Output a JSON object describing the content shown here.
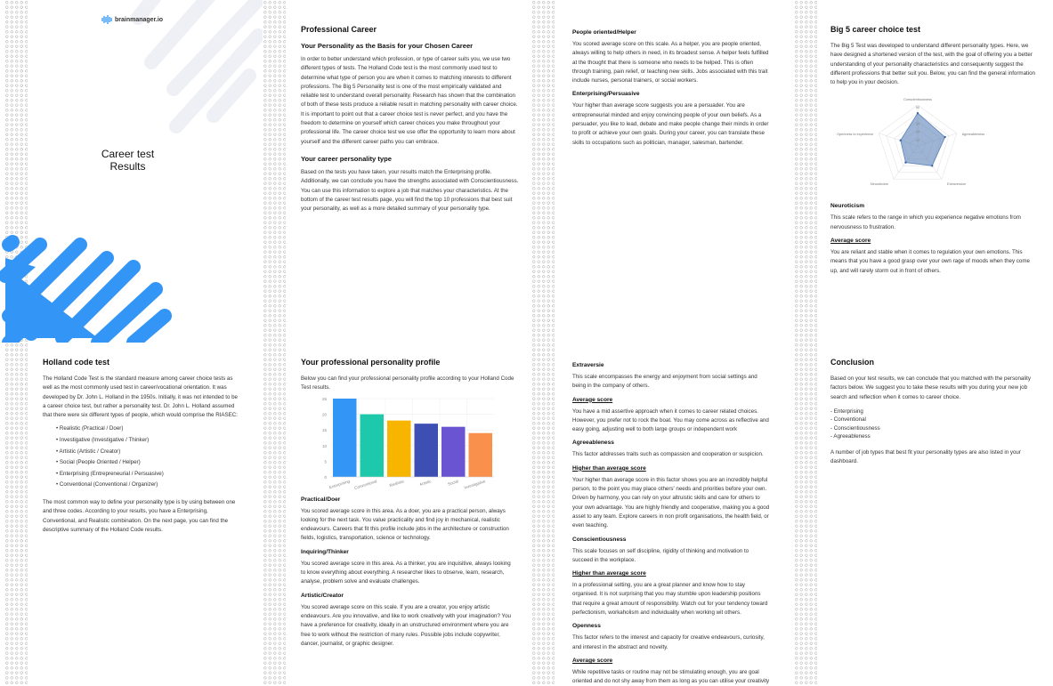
{
  "cover": {
    "logo": "brainmanager.io",
    "title_line1": "Career test",
    "title_line2": "Results",
    "accent": "#3396f7"
  },
  "professional": {
    "title": "Professional Career",
    "h_basis": "Your Personality as the Basis for your Chosen Career",
    "p_basis": "In order to better understand which profession, or type of career suits you, we use two different types of tests. The Holland Code test is the most commonly used test to determine what type of person you are when it comes to matching interests to different professions. The Big 5 Personality test is one of the most empirically validated and reliable test to understand overall personality. Research has shown that the combination of both of these tests produce a reliable result in matching personality with career choice. It is important to point out that a career choice test is never perfect, and you have the freedom to determine on yourself which career choices you make throughout your professional life. The career choice test we use offer the opportunity to learn more about yourself and the different career paths you can embrace.",
    "h_type": "Your career personality type",
    "p_type": "Based on the tests you have taken, your results match the Enterprising profile. Additionally, we can conclude you have the strengths associated with Conscientiousness. You can use this information to explore a job that matches your characteristics. At the bottom of the career test results page, you will find the top 10 professions that best suit your personality, as well as a more detailed summary of your personality type."
  },
  "page3": {
    "h_helper": "People oriented/Helper",
    "p_helper": "You scored average score on this scale. As a helper, you are people oriented, always willing to help others in need, in its broadest sense. A helper feels fulfilled at the thought that there is someone who needs to be helped. This is often through training, pain relief, or teaching new skills. Jobs associated with this trait include nurses, personal trainers, or social workers.",
    "h_enterprising": "Enterprising/Persuasive",
    "p_enterprising": "Your higher than average score suggests you are a persuader. You are entrepreneurial minded and enjoy convincing people of your own beliefs. As a persuader, you like to lead, debate and make people change their minds in order to profit or achieve your own goals. During your career, you can translate these skills to occupations such as politician, manager, salesman, bartender."
  },
  "big5": {
    "title": "Big 5 career choice test",
    "p_intro": "The Big 5 Test was developed to understand different personality types. Here, we have designed a shortened version of the test, with the goal of offering you a better understanding of your personality characteristics and consequently suggest the different professions that better suit you. Below, you can find the general information to help you in your decision.",
    "h_neuro": "Neuroticism",
    "p_neuro": "This scale refers to the range in which you experience negative emotions from nervousness to frustration.",
    "h_neuro_score": "Average score",
    "p_neuro_score": "You are reliant and stable when it comes to regulation your own emotions. This means that you have a good grasp over your own rage of moods when they come up, and will rarely storm out in front of others."
  },
  "holland": {
    "title": "Holland code test",
    "p_intro": "The Holland Code Test is the standard measure among career choice tests as well as the most commonly used test in career/vocational orientation. It was developed by Dr. John L. Holland in the 1950s. Initially, it was not intended to be a career choice test, but rather a personality test. Dr. John L. Holland assumed that there were six different types of people, which would comprise the RIASEC:",
    "items": [
      "• Realistic (Practical / Doer)",
      "• Investigative (Investigative / Thinker)",
      "• Artistic (Artistic / Creator)",
      "• Social (People Oriented / Helper)",
      "• Enterprising (Entrepreneurial / Persuasive)",
      "• Conventional (Conventional / Organizer)"
    ],
    "p_outro": "The most common way to define your personality type is by using between one and three codes. According to your results, you have a Enterprising, Conventional, and Realistic combination. On the next page, you can find the descriptive summary of the Holland Code results."
  },
  "profile": {
    "title": "Your professional personality profile",
    "p_intro": "Below you can find your professional personality profile according to your Holland Code Test results.",
    "h_doer": "Practical/Doer",
    "p_doer": "You scored average score in this area. As a doer, you are a practical person, always looking for the next task. You value practicality and find joy in mechanical, realistic endeavours. Careers that fit this profile include jobs in the architecture or construction fields, logistics, transportation, science or technology.",
    "h_thinker": "Inquiring/Thinker",
    "p_thinker": "You scored average score in this area. As a thinker, you are inquisitive, always looking to know everything about everything. A researcher likes to observe, learn, research, analyse, problem solve and evaluate challenges.",
    "h_creator": "Artistic/Creator",
    "p_creator": "You scored average score on this scale. If you are a creator, you enjoy artistic endeavours. Are you innovative, and like to work creatively with your imagination? You have a preference for creativity, ideally in an unstructured environment where you are free to work without the restriction of many rules. Possible jobs include copywriter, dancer, journalist, or graphic designer."
  },
  "page7": {
    "h_extra": "Extraversie",
    "p_extra": "This scale encompasses the energy and enjoyment from social settings and being in the company of others.",
    "h_extra_score": "Average score",
    "p_extra_score": "You have a mid assertive approach when it comes to career related choices. However, you prefer not to rock the boat. You may come across as reflective and easy going, adjusting well to both large groups or independent work",
    "h_agree": "Agreeableness",
    "p_agree": "This factor addresses traits such as compassion and cooperation or suspicion.",
    "h_agree_score": "Higher than average score",
    "p_agree_score": "Your higher than average score in this factor shows you are an incredibly helpful person, to the point you may place others' needs and priorities before your own. Driven by harmony, you can rely on your altruistic skills and care for others to your own advantage. You are highly friendly and cooperative, making you a good asset to any team. Explore careers in non profit organisations, the health field, or even teaching.",
    "h_consc": "Conscientiousness",
    "p_consc": "This scale focuses on self discipline, rigidity of thinking and motivation to succeed in the workplace.",
    "h_consc_score": "Higher than average score",
    "p_consc_score": "In a professional setting, you are a great planner and know how to stay organised. It is not surprising that you may stumble upon leadership positions that require a great amount of responsibility. Watch out for your tendency toward perfectionism, workaholism and individuality when working wit others.",
    "h_open": "Openness",
    "p_open": "This factor refers to the interest and capacity for creative endeavours, curiosity, and interest in the abstract and novelty.",
    "h_open_score": "Average score",
    "p_open_score": "While repetitive tasks or routine may not be stimulating enough, you are goal oriented and do not shy away from them as long as you can utilise your creativity and intellect in different ways."
  },
  "conclusion": {
    "title": "Conclusion",
    "p_intro": "Based on your test results, we can conclude that you matched with the personality factors below. We suggest you to take these results with you during your new job search and reflection when it comes to career choice.",
    "items": [
      "- Enterprising",
      "- Conventional",
      "- Conscientiousness",
      "- Agreeableness"
    ],
    "p_outro": "A number of job types that best fit your personality types are also listed in your dashboard."
  },
  "chart_data": [
    {
      "type": "bar",
      "categories": [
        "Enterprising",
        "Conventional",
        "Realistic",
        "Artistic",
        "Social",
        "Investigative"
      ],
      "values": [
        25,
        20,
        18,
        17,
        16,
        14
      ],
      "colors": [
        "#3396f7",
        "#1dc9aa",
        "#f7b500",
        "#3d4fb3",
        "#6a54d1",
        "#f9914d"
      ],
      "ylim": [
        0,
        25
      ],
      "yticks": [
        0,
        5,
        10,
        15,
        20,
        25
      ],
      "grid": true
    },
    {
      "type": "radar",
      "categories": [
        "Conscientiousness",
        "Agreeableness",
        "Extraversion",
        "Neuroticism",
        "Openness to experience"
      ],
      "values": [
        40,
        35,
        30,
        25,
        22
      ],
      "rlim": [
        0,
        50
      ],
      "rticks": [
        10,
        20,
        30,
        50
      ],
      "color": "#5b82b8"
    }
  ]
}
